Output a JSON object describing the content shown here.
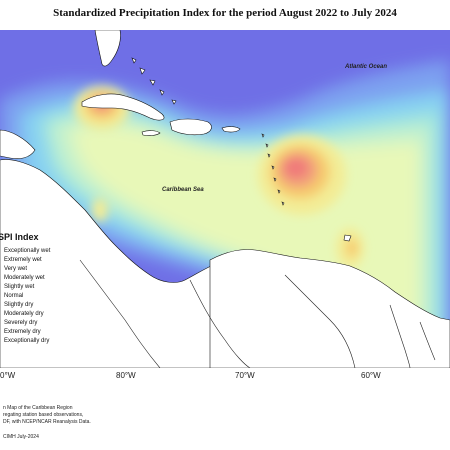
{
  "title": "Standardized Precipitation Index for the period August 2022 to July 2024",
  "map": {
    "labels": {
      "ocean": "Atlantic Ocean",
      "sea": "Caribbean Sea"
    },
    "lon_ticks": [
      "0°W",
      "80°W",
      "70°W",
      "60°W"
    ],
    "colors": {
      "exceptionally_wet": "#6f6fe6",
      "extremely_wet": "#7da0f0",
      "very_wet": "#86d0f2",
      "moderately_wet": "#a2e6dd",
      "slightly_wet": "#c6f2cc",
      "normal": "#e8f8b8",
      "slightly_dry": "#f3ec95",
      "moderately_dry": "#f6cb6e",
      "severely_dry": "#f2a07a",
      "extremely_dry": "#f07a7a"
    }
  },
  "legend": {
    "title": "SPI Index",
    "items": [
      "Exceptionally wet",
      "Extremely wet",
      "Very wet",
      "Moderately wet",
      "Slightly wet",
      "Normal",
      "Slightly dry",
      "Moderately dry",
      "Severely dry",
      "Extremely dry",
      "Exceptionally dry"
    ]
  },
  "footer": {
    "line1": "n Map of the Caribbean Region",
    "line2": "regating station based observations,",
    "line3": "DF, with NCEP/NCAR Reanalysis Data.",
    "line4": "CIMH July-2024"
  }
}
